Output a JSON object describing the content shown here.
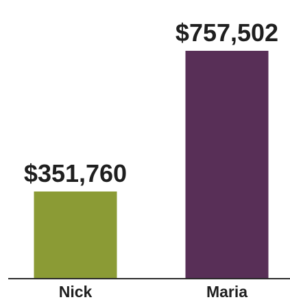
{
  "chart_data": {
    "type": "bar",
    "title": "",
    "xlabel": "",
    "ylabel": "",
    "categories": [
      "Nick",
      "Maria"
    ],
    "values": [
      351760,
      757502
    ],
    "value_labels": [
      "$351,760",
      "$757,502"
    ],
    "colors": [
      "#8b9b35",
      "#582f57"
    ],
    "ylim": [
      0,
      800000
    ],
    "grid": false,
    "legend": "none"
  }
}
